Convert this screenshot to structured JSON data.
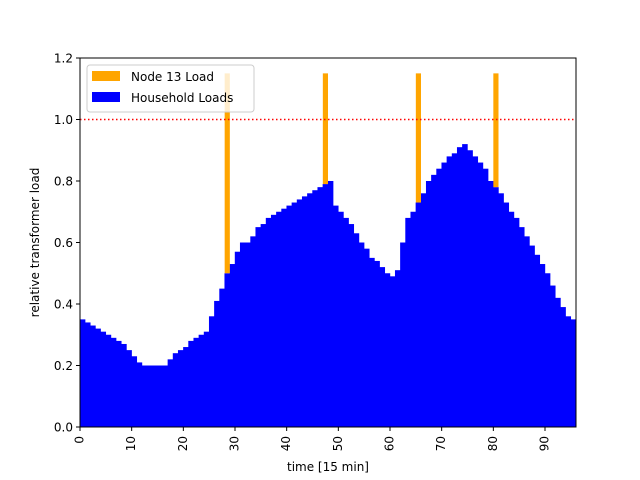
{
  "chart_data": {
    "type": "bar",
    "title": "",
    "xlabel": "time [15 min]",
    "ylabel": "relative transformer load",
    "xlim": [
      0,
      96
    ],
    "ylim": [
      0,
      1.2
    ],
    "x_ticks": [
      0,
      10,
      20,
      30,
      40,
      50,
      60,
      70,
      80,
      90
    ],
    "x_tick_labels": [
      "0",
      "10",
      "20",
      "30",
      "40",
      "50",
      "60",
      "70",
      "80",
      "90"
    ],
    "y_ticks": [
      0.0,
      0.2,
      0.4,
      0.6,
      0.8,
      1.0,
      1.2
    ],
    "y_tick_labels": [
      "0.0",
      "0.2",
      "0.4",
      "0.6",
      "0.8",
      "1.0",
      "1.2"
    ],
    "grid": false,
    "legend_placement": "top-left",
    "threshold_line": {
      "y": 1.0,
      "color": "#ff0000",
      "style": "dotted"
    },
    "series": [
      {
        "name": "Node 13 Load",
        "color": "#ffa500",
        "stacked_on": "Household Loads",
        "x": [
          28,
          47,
          65,
          80
        ],
        "top": [
          1.15,
          1.15,
          1.15,
          1.15
        ]
      },
      {
        "name": "Household Loads",
        "color": "#0000ff",
        "x": [
          0,
          1,
          2,
          3,
          4,
          5,
          6,
          7,
          8,
          9,
          10,
          11,
          12,
          13,
          14,
          15,
          16,
          17,
          18,
          19,
          20,
          21,
          22,
          23,
          24,
          25,
          26,
          27,
          28,
          29,
          30,
          31,
          32,
          33,
          34,
          35,
          36,
          37,
          38,
          39,
          40,
          41,
          42,
          43,
          44,
          45,
          46,
          47,
          48,
          49,
          50,
          51,
          52,
          53,
          54,
          55,
          56,
          57,
          58,
          59,
          60,
          61,
          62,
          63,
          64,
          65,
          66,
          67,
          68,
          69,
          70,
          71,
          72,
          73,
          74,
          75,
          76,
          77,
          78,
          79,
          80,
          81,
          82,
          83,
          84,
          85,
          86,
          87,
          88,
          89,
          90,
          91,
          92,
          93,
          94,
          95
        ],
        "values": [
          0.35,
          0.34,
          0.33,
          0.32,
          0.31,
          0.3,
          0.29,
          0.28,
          0.27,
          0.25,
          0.23,
          0.21,
          0.2,
          0.2,
          0.2,
          0.2,
          0.2,
          0.22,
          0.24,
          0.25,
          0.26,
          0.28,
          0.29,
          0.3,
          0.31,
          0.36,
          0.41,
          0.45,
          0.5,
          0.53,
          0.57,
          0.6,
          0.6,
          0.62,
          0.65,
          0.66,
          0.68,
          0.69,
          0.7,
          0.71,
          0.72,
          0.73,
          0.74,
          0.75,
          0.76,
          0.77,
          0.78,
          0.79,
          0.8,
          0.72,
          0.7,
          0.68,
          0.66,
          0.63,
          0.6,
          0.58,
          0.55,
          0.54,
          0.52,
          0.5,
          0.49,
          0.51,
          0.6,
          0.68,
          0.7,
          0.73,
          0.76,
          0.8,
          0.82,
          0.84,
          0.86,
          0.88,
          0.89,
          0.91,
          0.92,
          0.9,
          0.88,
          0.86,
          0.84,
          0.8,
          0.78,
          0.76,
          0.73,
          0.7,
          0.68,
          0.65,
          0.62,
          0.59,
          0.56,
          0.53,
          0.5,
          0.46,
          0.42,
          0.39,
          0.36,
          0.35
        ]
      }
    ]
  }
}
